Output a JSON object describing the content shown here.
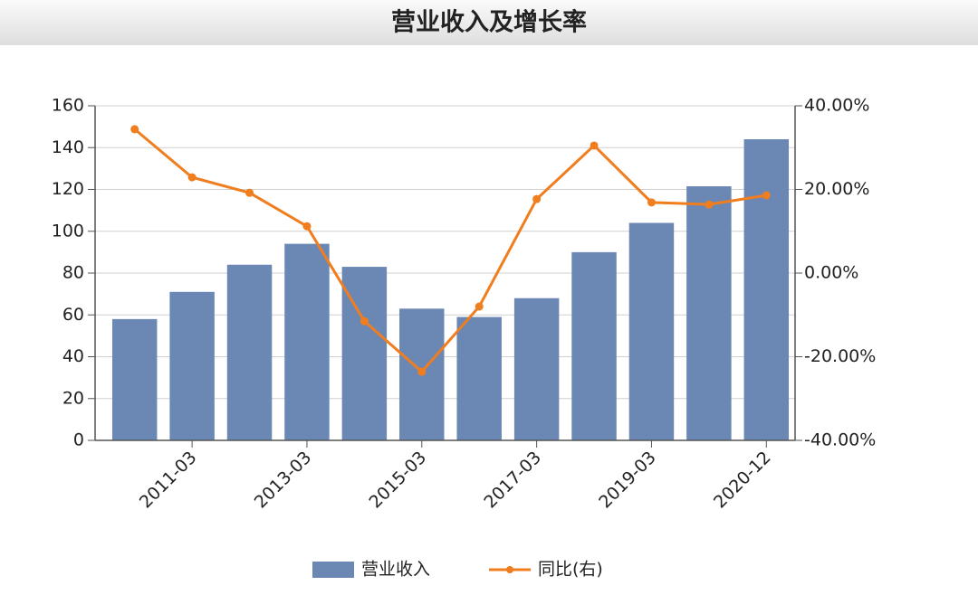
{
  "chart_data": {
    "type": "bar+line",
    "title": "营业收入及增长率",
    "categories": [
      null,
      "2011-03",
      null,
      "2013-03",
      null,
      "2015-03",
      null,
      "2017-03",
      null,
      "2019-03",
      null,
      "2020-12"
    ],
    "series": [
      {
        "name": "营业收入",
        "type": "bar",
        "color": "#6b88b5",
        "values": [
          58,
          71,
          84,
          94,
          83,
          63,
          59,
          68,
          90,
          104,
          121.5,
          144
        ]
      },
      {
        "name": "同比(右)",
        "type": "line",
        "axis": "y2",
        "color": "#f07d1e",
        "values": [
          34.4,
          22.9,
          19.2,
          11.2,
          -11.5,
          -23.6,
          -8.0,
          17.7,
          30.5,
          16.9,
          16.4,
          18.6
        ]
      }
    ],
    "ylim": [
      0,
      160
    ],
    "yticks": [
      0,
      20,
      40,
      60,
      80,
      100,
      120,
      140,
      160
    ],
    "y2lim": [
      -40,
      40
    ],
    "y2ticks": [
      {
        "value": -40,
        "label": "-40.00%"
      },
      {
        "value": -20,
        "label": "-20.00%"
      },
      {
        "value": 0,
        "label": "0.00%"
      },
      {
        "value": 20,
        "label": "20.00%"
      },
      {
        "value": 40,
        "label": "40.00%"
      }
    ],
    "grid": true,
    "legend": "bottom"
  }
}
